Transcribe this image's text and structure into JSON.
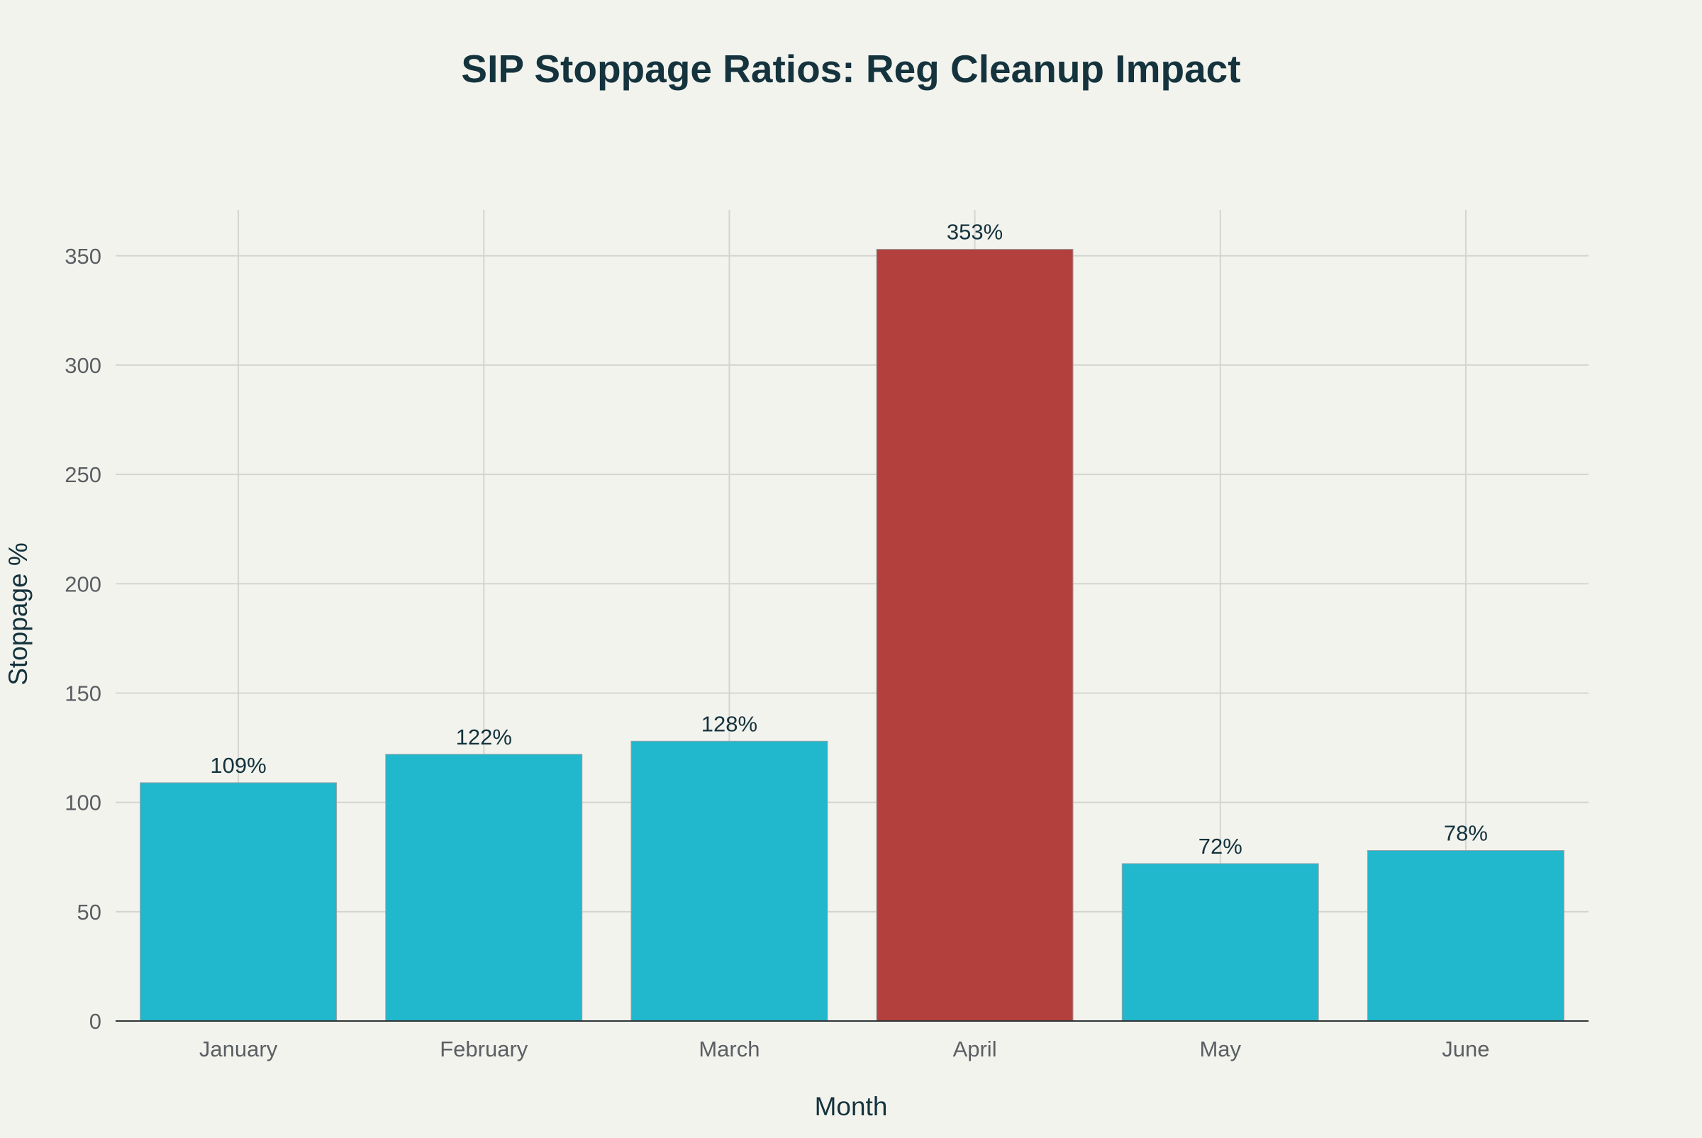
{
  "chart_data": {
    "type": "bar",
    "title": "SIP Stoppage Ratios: Reg Cleanup Impact",
    "xlabel": "Month",
    "ylabel": "Stoppage %",
    "categories": [
      "January",
      "February",
      "March",
      "April",
      "May",
      "June"
    ],
    "values": [
      109,
      122,
      128,
      353,
      72,
      78
    ],
    "data_labels": [
      "109%",
      "122%",
      "128%",
      "353%",
      "72%",
      "78%"
    ],
    "bar_colors": [
      "#21b7cc",
      "#21b7cc",
      "#21b7cc",
      "#b3403c",
      "#21b7cc",
      "#21b7cc"
    ],
    "ylim": [
      0,
      371
    ],
    "yticks": [
      0,
      50,
      100,
      150,
      200,
      250,
      300,
      350
    ],
    "grid": true,
    "legend": "none"
  }
}
